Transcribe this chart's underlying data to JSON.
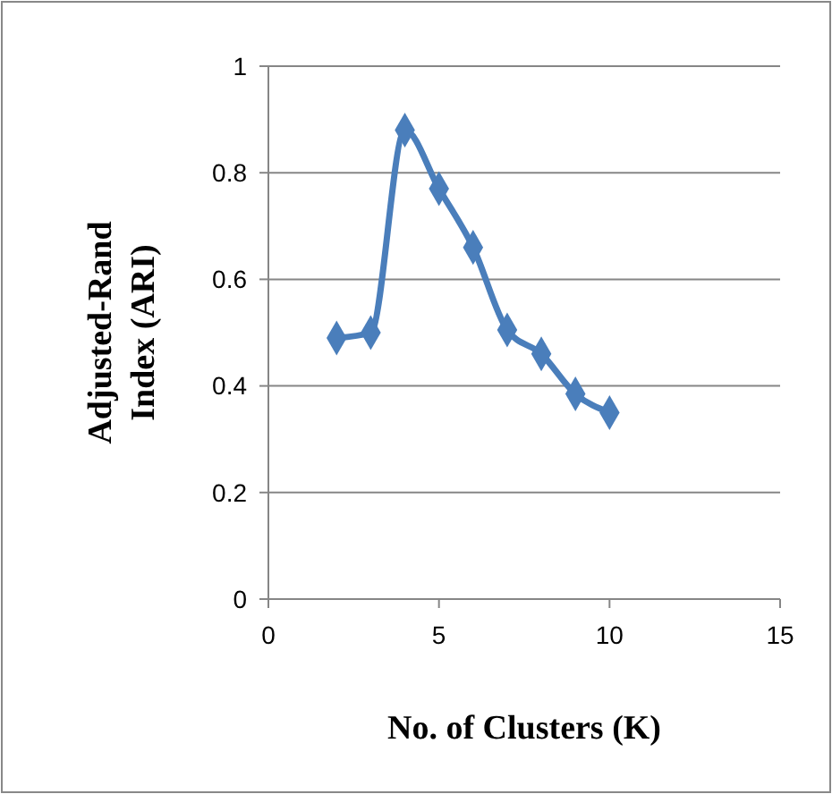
{
  "chart_data": {
    "type": "line",
    "xlabel": "No. of Clusters (K)",
    "ylabel": "Adjusted-Rand Index (ARI)",
    "x": [
      2,
      3,
      4,
      5,
      6,
      7,
      8,
      9,
      10
    ],
    "series": [
      {
        "color": "#4a7ebb",
        "values": [
          0.49,
          0.5,
          0.88,
          0.77,
          0.66,
          0.505,
          0.46,
          0.385,
          0.35
        ]
      }
    ],
    "xlim": [
      0,
      15
    ],
    "xticks": [
      0,
      5,
      10,
      15
    ],
    "ylim": [
      0,
      1
    ],
    "yticks": [
      0,
      0.2,
      0.4,
      0.6,
      0.8,
      1
    ],
    "grid": "y",
    "marker": "diamond",
    "line_style": "solid"
  }
}
